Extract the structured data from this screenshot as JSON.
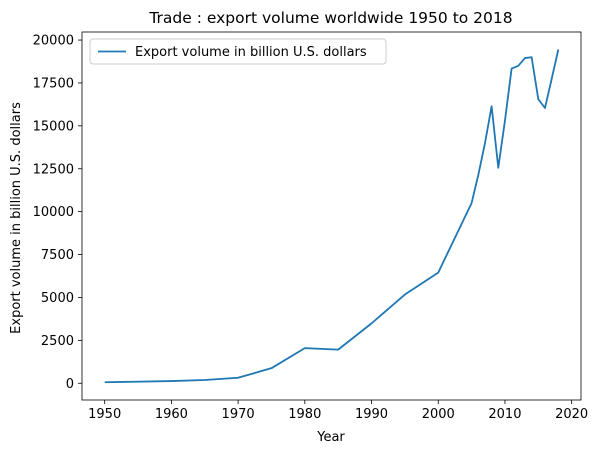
{
  "chart_data": {
    "type": "line",
    "title": "Trade : export volume worldwide 1950 to 2018",
    "xlabel": "Year",
    "ylabel": "Export volume in billion U.S. dollars",
    "xlim": [
      1946.6,
      2021.4
    ],
    "ylim": [
      -975,
      20469
    ],
    "x_ticks": [
      1950,
      1960,
      1970,
      1980,
      1990,
      2000,
      2010,
      2020
    ],
    "y_ticks": [
      0,
      2500,
      5000,
      7500,
      10000,
      12500,
      15000,
      17500,
      20000
    ],
    "grid": false,
    "legend_position": "top-left",
    "series": [
      {
        "name": "Export volume in billion U.S. dollars",
        "color": "#1f77b4",
        "x": [
          1950,
          1960,
          1965,
          1970,
          1975,
          1980,
          1985,
          1990,
          1995,
          2000,
          2005,
          2006,
          2007,
          2008,
          2009,
          2010,
          2011,
          2012,
          2013,
          2014,
          2015,
          2016,
          2017,
          2018
        ],
        "y": [
          60,
          130,
          190,
          320,
          880,
          2050,
          1960,
          3490,
          5170,
          6450,
          10500,
          12130,
          13980,
          16140,
          12560,
          15300,
          18340,
          18500,
          18950,
          19000,
          16550,
          16040,
          17730,
          19450
        ]
      }
    ]
  }
}
